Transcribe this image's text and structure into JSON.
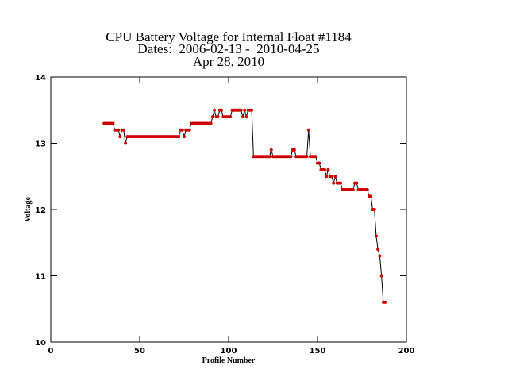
{
  "chart_data": {
    "type": "line",
    "title_lines": [
      "CPU Battery Voltage for Internal Float #1184",
      "Dates:  2006-02-13 -  2010-04-25",
      "Apr 28, 2010"
    ],
    "xlabel": "Profile Number",
    "ylabel": "Voltage",
    "xlim": [
      0,
      200
    ],
    "xticks": [
      0,
      50,
      100,
      150,
      200
    ],
    "ylim": [
      10,
      14
    ],
    "yticks": [
      10,
      11,
      12,
      13,
      14
    ],
    "grid": false,
    "x": [
      30,
      31,
      32,
      33,
      34,
      35,
      36,
      37,
      38,
      39,
      40,
      41,
      42,
      43,
      44,
      45,
      46,
      47,
      48,
      49,
      50,
      51,
      52,
      53,
      54,
      55,
      56,
      57,
      58,
      59,
      60,
      61,
      62,
      63,
      64,
      65,
      66,
      67,
      68,
      69,
      70,
      71,
      72,
      73,
      74,
      75,
      76,
      77,
      78,
      79,
      80,
      81,
      82,
      83,
      84,
      85,
      86,
      87,
      88,
      89,
      90,
      91,
      92,
      93,
      94,
      95,
      96,
      97,
      98,
      99,
      100,
      101,
      102,
      103,
      104,
      105,
      106,
      107,
      108,
      109,
      110,
      111,
      112,
      113,
      114,
      115,
      116,
      117,
      118,
      119,
      120,
      121,
      122,
      123,
      124,
      125,
      126,
      127,
      128,
      129,
      130,
      131,
      132,
      133,
      134,
      135,
      136,
      137,
      138,
      139,
      140,
      141,
      142,
      143,
      144,
      145,
      146,
      147,
      148,
      149,
      150,
      151,
      152,
      153,
      154,
      155,
      156,
      157,
      158,
      159,
      160,
      161,
      162,
      163,
      164,
      165,
      166,
      167,
      168,
      169,
      170,
      171,
      172,
      173,
      174,
      175,
      176,
      177,
      178,
      179,
      180,
      181,
      182,
      183,
      184,
      185,
      186,
      187,
      188
    ],
    "series": [
      {
        "color": "#000000",
        "marker_color": "#cc0000",
        "values": [
          13.3,
          13.3,
          13.3,
          13.3,
          13.3,
          13.3,
          13.2,
          13.2,
          13.2,
          13.1,
          13.2,
          13.2,
          13.0,
          13.1,
          13.1,
          13.1,
          13.1,
          13.1,
          13.1,
          13.1,
          13.1,
          13.1,
          13.1,
          13.1,
          13.1,
          13.1,
          13.1,
          13.1,
          13.1,
          13.1,
          13.1,
          13.1,
          13.1,
          13.1,
          13.1,
          13.1,
          13.1,
          13.1,
          13.1,
          13.1,
          13.1,
          13.1,
          13.1,
          13.2,
          13.2,
          13.1,
          13.2,
          13.2,
          13.2,
          13.3,
          13.3,
          13.3,
          13.3,
          13.3,
          13.3,
          13.3,
          13.3,
          13.3,
          13.3,
          13.3,
          13.3,
          13.4,
          13.5,
          13.4,
          13.4,
          13.5,
          13.5,
          13.4,
          13.4,
          13.4,
          13.4,
          13.4,
          13.5,
          13.5,
          13.5,
          13.5,
          13.5,
          13.5,
          13.4,
          13.5,
          13.4,
          13.5,
          13.5,
          13.5,
          12.8,
          12.8,
          12.8,
          12.8,
          12.8,
          12.8,
          12.8,
          12.8,
          12.8,
          12.8,
          12.9,
          12.8,
          12.8,
          12.8,
          12.8,
          12.8,
          12.8,
          12.8,
          12.8,
          12.8,
          12.8,
          12.8,
          12.9,
          12.9,
          12.8,
          12.8,
          12.8,
          12.8,
          12.8,
          12.8,
          12.8,
          13.2,
          12.8,
          12.8,
          12.8,
          12.8,
          12.7,
          12.7,
          12.6,
          12.6,
          12.6,
          12.5,
          12.6,
          12.5,
          12.5,
          12.4,
          12.5,
          12.4,
          12.4,
          12.4,
          12.3,
          12.3,
          12.3,
          12.3,
          12.3,
          12.3,
          12.3,
          12.4,
          12.4,
          12.3,
          12.3,
          12.3,
          12.3,
          12.3,
          12.3,
          12.2,
          12.2,
          12.0,
          12.0,
          11.6,
          11.4,
          11.3,
          11.0,
          10.6,
          10.6
        ]
      }
    ]
  }
}
